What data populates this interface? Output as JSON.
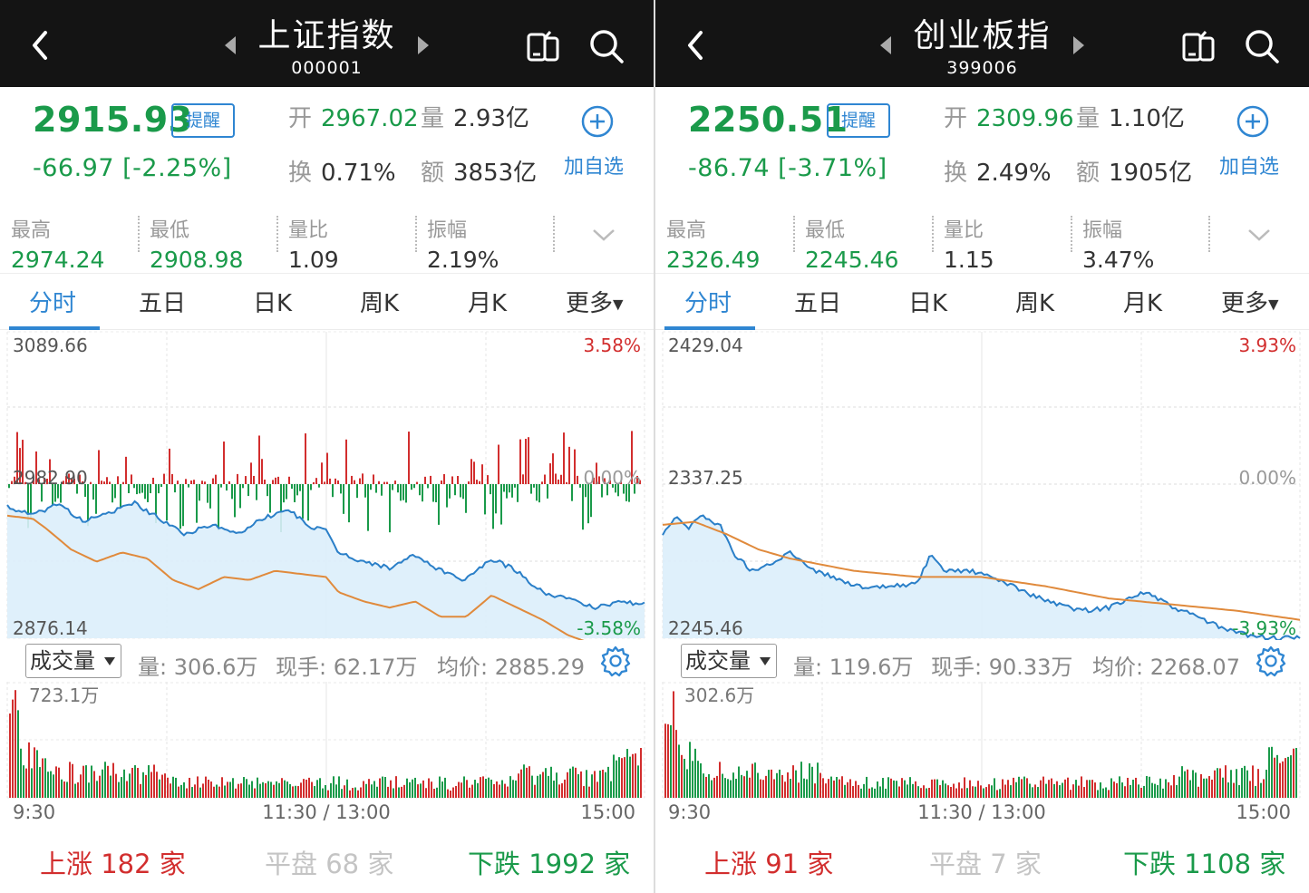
{
  "colors": {
    "up": "#d22e2e",
    "down": "#1a9a4a",
    "accent": "#2f86d2",
    "avg_line": "#e08a3c",
    "price_line": "#2a7fc8",
    "area_fill": "#dceefb",
    "header_bg": "#141414"
  },
  "icons": {
    "back": "chevron-left-icon",
    "prev": "triangle-left-icon",
    "next": "triangle-right-icon",
    "screen": "screen-switch-icon",
    "search": "search-icon",
    "add": "plus-circle-icon",
    "expand": "chevron-down-icon",
    "settings": "gear-icon"
  },
  "left": {
    "header": {
      "title": "上证指数",
      "code": "000001"
    },
    "quote": {
      "price": "2915.93",
      "remind_label": "提醒",
      "change": "-66.97  [-2.25%]",
      "open_label": "开",
      "open": "2967.02",
      "volume_label": "量",
      "volume": "2.93亿",
      "turnover_label": "换",
      "turnover": "0.71%",
      "amount_label": "额",
      "amount": "3853亿",
      "add_label": "加自选"
    },
    "stats": [
      {
        "label": "最高",
        "value": "2974.24"
      },
      {
        "label": "最低",
        "value": "2908.98"
      },
      {
        "label": "量比",
        "value": "1.09"
      },
      {
        "label": "振幅",
        "value": "2.19%"
      }
    ],
    "tabs": [
      "分时",
      "五日",
      "日K",
      "周K",
      "月K",
      "更多"
    ],
    "chart_labels": {
      "top_price": "3089.66",
      "top_pct": "3.58%",
      "mid_price": "2982.90",
      "mid_pct": "0.00%",
      "bottom_price": "2876.14",
      "bottom_pct": "-3.58%"
    },
    "volume_bar": {
      "select_label": "成交量",
      "vol": "量: 306.6万",
      "hand": "现手: 62.17万",
      "avg": "均价: 2885.29"
    },
    "vol_max": "723.1万",
    "time_axis": [
      "9:30",
      "11:30 / 13:00",
      "15:00"
    ],
    "breadth": {
      "up": "上涨 182 家",
      "flat": "平盘 68 家",
      "down": "下跌 1992 家"
    }
  },
  "right": {
    "header": {
      "title": "创业板指",
      "code": "399006"
    },
    "quote": {
      "price": "2250.51",
      "remind_label": "提醒",
      "change": "-86.74  [-3.71%]",
      "open_label": "开",
      "open": "2309.96",
      "volume_label": "量",
      "volume": "1.10亿",
      "turnover_label": "换",
      "turnover": "2.49%",
      "amount_label": "额",
      "amount": "1905亿",
      "add_label": "加自选"
    },
    "stats": [
      {
        "label": "最高",
        "value": "2326.49"
      },
      {
        "label": "最低",
        "value": "2245.46"
      },
      {
        "label": "量比",
        "value": "1.15"
      },
      {
        "label": "振幅",
        "value": "3.47%"
      }
    ],
    "tabs": [
      "分时",
      "五日",
      "日K",
      "周K",
      "月K",
      "更多"
    ],
    "chart_labels": {
      "top_price": "2429.04",
      "top_pct": "3.93%",
      "mid_price": "2337.25",
      "mid_pct": "0.00%",
      "bottom_price": "2245.46",
      "bottom_pct": "-3.93%"
    },
    "volume_bar": {
      "select_label": "成交量",
      "vol": "量: 119.6万",
      "hand": "现手: 90.33万",
      "avg": "均价: 2268.07"
    },
    "vol_max": "302.6万",
    "time_axis": [
      "9:30",
      "11:30 / 13:00",
      "15:00"
    ],
    "breadth": {
      "up": "上涨 91 家",
      "flat": "平盘 7 家",
      "down": "下跌 1108 家"
    }
  }
}
